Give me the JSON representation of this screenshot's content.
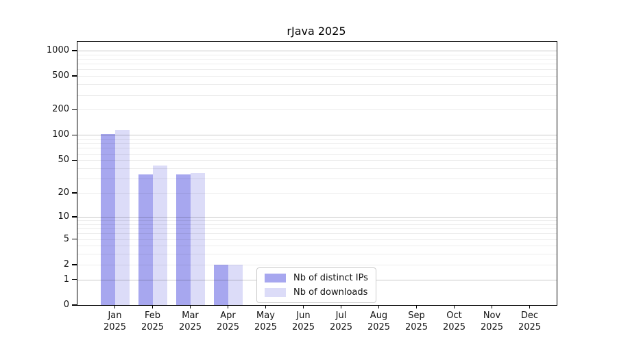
{
  "chart_data": {
    "type": "bar",
    "title": "rJava 2025",
    "x_tick_labels": [
      {
        "line1": "Jan",
        "line2": "2025"
      },
      {
        "line1": "Feb",
        "line2": "2025"
      },
      {
        "line1": "Mar",
        "line2": "2025"
      },
      {
        "line1": "Apr",
        "line2": "2025"
      },
      {
        "line1": "May",
        "line2": "2025"
      },
      {
        "line1": "Jun",
        "line2": "2025"
      },
      {
        "line1": "Jul",
        "line2": "2025"
      },
      {
        "line1": "Aug",
        "line2": "2025"
      },
      {
        "line1": "Sep",
        "line2": "2025"
      },
      {
        "line1": "Oct",
        "line2": "2025"
      },
      {
        "line1": "Nov",
        "line2": "2025"
      },
      {
        "line1": "Dec",
        "line2": "2025"
      }
    ],
    "y_ticks": [
      0,
      1,
      2,
      5,
      10,
      20,
      50,
      100,
      200,
      500,
      1000
    ],
    "y_scale": "log10(1+x)",
    "ylim": [
      0,
      1000
    ],
    "grid": "horizontal",
    "series": [
      {
        "name": "Nb of distinct IPs",
        "color": "#a7a7ef",
        "values": [
          103,
          34,
          34,
          2,
          0,
          0,
          0,
          0,
          0,
          0,
          0,
          0
        ]
      },
      {
        "name": "Nb of downloads",
        "color": "#dcdcf8",
        "values": [
          114,
          43,
          35,
          2,
          0,
          0,
          0,
          0,
          0,
          0,
          0,
          0
        ]
      }
    ],
    "legend": {
      "position": "inside-bottom-center",
      "entries": [
        "Nb of distinct IPs",
        "Nb of downloads"
      ]
    }
  },
  "colors": {
    "grid_major": "#c9c9c9",
    "grid_minor": "#ebebeb",
    "spine": "#000000",
    "background": "#ffffff"
  }
}
